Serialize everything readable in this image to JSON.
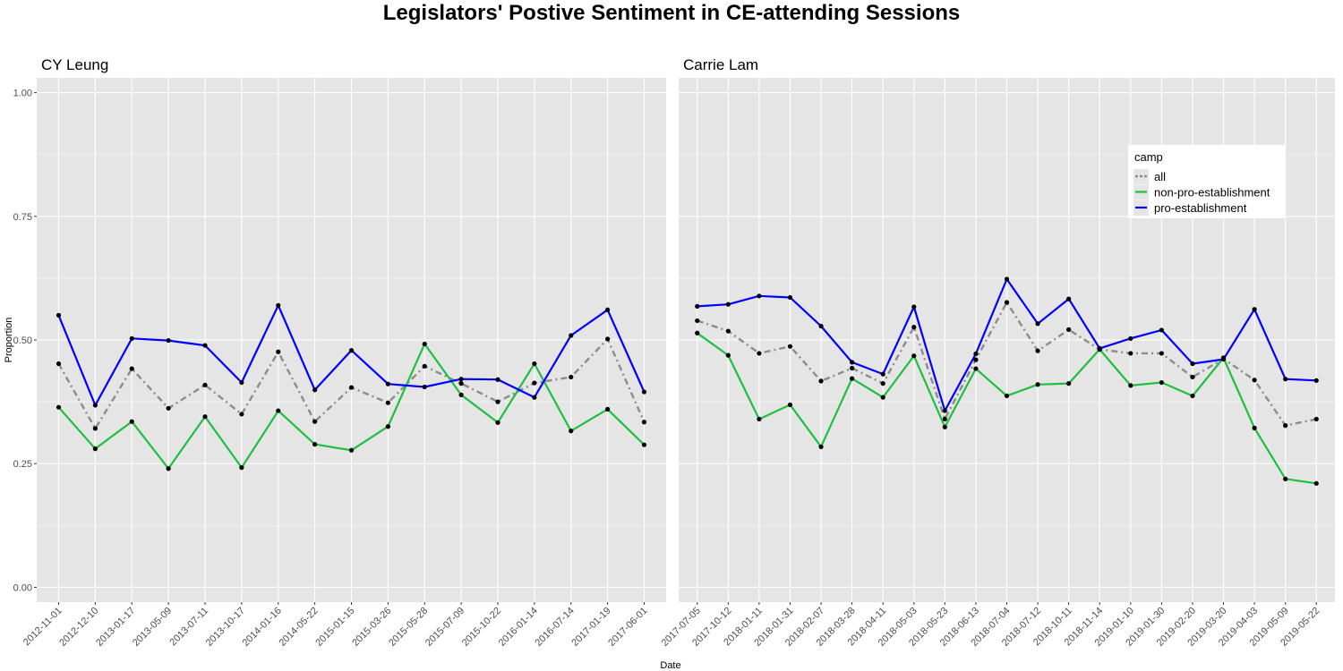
{
  "title": "Legislators' Postive Sentiment in CE-attending Sessions",
  "chart_data": {
    "type": "line",
    "title": "Legislators' Postive Sentiment in CE-attending Sessions",
    "xlabel": "Date",
    "ylabel": "Proportion",
    "ylim": [
      -0.03,
      1.03
    ],
    "yticks": [
      0.0,
      0.25,
      0.5,
      0.75,
      1.0
    ],
    "ytick_labels": [
      "0.00",
      "0.25",
      "0.50",
      "0.75",
      "1.00"
    ],
    "grid": true,
    "legend": {
      "title": "camp",
      "placement": "inside-top-right",
      "entries": [
        "all",
        "non-pro-establishment",
        "pro-establishment"
      ]
    },
    "colors": {
      "all": "#8c8c8c",
      "non-pro-establishment": "#1fbf3f",
      "pro-establishment": "#0000ff",
      "panel_bg": "#e5e5e5",
      "grid": "#ffffff",
      "point": "#000000"
    },
    "facets": [
      {
        "name": "CY Leung",
        "categories": [
          "2012-11-01",
          "2012-12-10",
          "2013-01-17",
          "2013-05-09",
          "2013-07-11",
          "2013-10-17",
          "2014-01-16",
          "2014-05-22",
          "2015-01-15",
          "2015-03-26",
          "2015-05-28",
          "2015-07-09",
          "2015-10-22",
          "2016-01-14",
          "2016-07-14",
          "2017-01-19",
          "2017-06-01"
        ],
        "series": [
          {
            "name": "all",
            "values": [
              0.452,
              0.321,
              0.442,
              0.362,
              0.409,
              0.35,
              0.476,
              0.335,
              0.404,
              0.373,
              0.447,
              0.412,
              0.375,
              0.413,
              0.425,
              0.502,
              0.334
            ]
          },
          {
            "name": "non-pro-establishment",
            "values": [
              0.364,
              0.28,
              0.335,
              0.24,
              0.345,
              0.242,
              0.357,
              0.289,
              0.277,
              0.325,
              0.492,
              0.389,
              0.333,
              0.452,
              0.316,
              0.36,
              0.288
            ]
          },
          {
            "name": "pro-establishment",
            "values": [
              0.55,
              0.368,
              0.503,
              0.499,
              0.489,
              0.414,
              0.57,
              0.399,
              0.479,
              0.411,
              0.405,
              0.421,
              0.42,
              0.384,
              0.509,
              0.561,
              0.395
            ]
          }
        ]
      },
      {
        "name": "Carrie Lam",
        "categories": [
          "2017-07-05",
          "2017-10-12",
          "2018-01-11",
          "2018-01-31",
          "2018-02-07",
          "2018-03-28",
          "2018-04-11",
          "2018-05-03",
          "2018-05-23",
          "2018-06-13",
          "2018-07-04",
          "2018-07-12",
          "2018-10-11",
          "2018-11-14",
          "2019-01-10",
          "2019-01-30",
          "2019-02-20",
          "2019-03-20",
          "2019-04-03",
          "2019-05-09",
          "2019-05-22"
        ],
        "series": [
          {
            "name": "all",
            "values": [
              0.539,
              0.518,
              0.473,
              0.487,
              0.417,
              0.443,
              0.412,
              0.526,
              0.34,
              0.46,
              0.576,
              0.478,
              0.521,
              0.481,
              0.473,
              0.473,
              0.425,
              0.462,
              0.419,
              0.327,
              0.34
            ]
          },
          {
            "name": "non-pro-establishment",
            "values": [
              0.514,
              0.469,
              0.34,
              0.369,
              0.284,
              0.422,
              0.384,
              0.468,
              0.324,
              0.442,
              0.387,
              0.41,
              0.412,
              0.481,
              0.408,
              0.414,
              0.387,
              0.464,
              0.322,
              0.219,
              0.21
            ]
          },
          {
            "name": "pro-establishment",
            "values": [
              0.568,
              0.572,
              0.589,
              0.586,
              0.528,
              0.455,
              0.431,
              0.567,
              0.357,
              0.472,
              0.623,
              0.533,
              0.583,
              0.483,
              0.503,
              0.52,
              0.452,
              0.461,
              0.562,
              0.421,
              0.418
            ]
          }
        ]
      }
    ]
  }
}
